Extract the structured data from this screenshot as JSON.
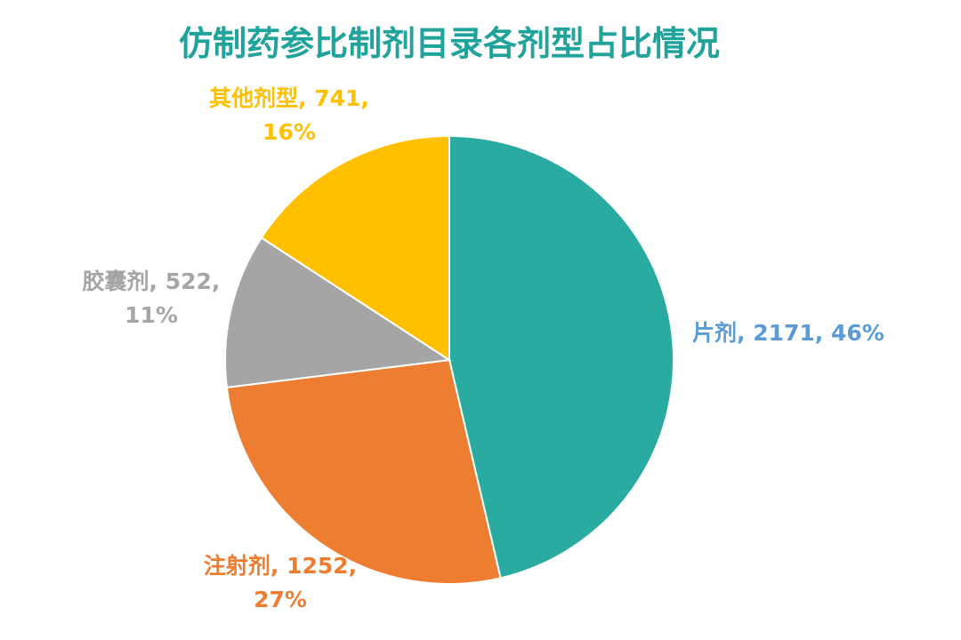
{
  "chart_data": {
    "type": "pie",
    "title": "仿制药参比制剂目录各剂型占比情况",
    "values": [
      2171,
      1252,
      522,
      741
    ],
    "value_labels": [
      "片剂, 2171, 46%",
      "注射剂, 1252,\n27%",
      "胶囊剂, 522,\n11%",
      "其他剂型, 741,\n16%"
    ],
    "colors": [
      "#2aaba2",
      "#ed7d31",
      "#a5a5a5",
      "#ffc000"
    ],
    "label_colors": [
      "#5b9bd5",
      "#ed7d31",
      "#a5a5a5",
      "#ffc000"
    ]
  }
}
